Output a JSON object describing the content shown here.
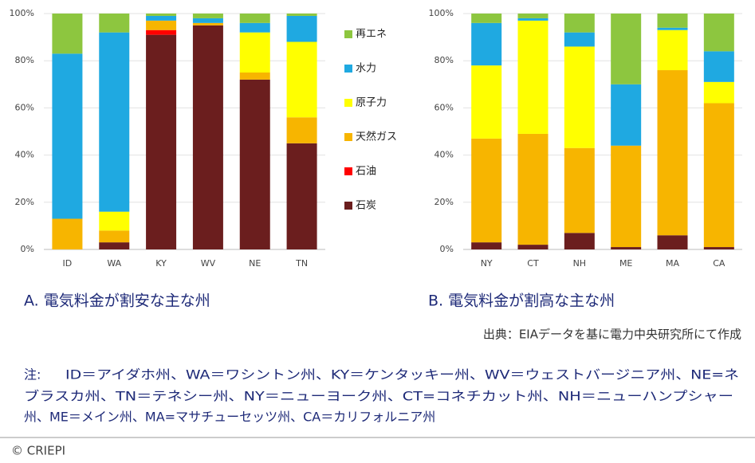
{
  "chart_data": [
    {
      "type": "bar",
      "stacked": true,
      "caption": "A. 電気料金が割安な主な州",
      "categories": [
        "ID",
        "WA",
        "KY",
        "WV",
        "NE",
        "TN"
      ],
      "series": [
        {
          "name": "石炭",
          "color": "#6b1e1e",
          "values": [
            0,
            3,
            91,
            95,
            72,
            45
          ]
        },
        {
          "name": "石油",
          "color": "#ff0000",
          "values": [
            0,
            0,
            2,
            0,
            0,
            0
          ]
        },
        {
          "name": "天然ガス",
          "color": "#f7b500",
          "values": [
            13,
            5,
            4,
            1,
            3,
            11
          ]
        },
        {
          "name": "原子力",
          "color": "#ffff00",
          "values": [
            0,
            8,
            0,
            0,
            17,
            32
          ]
        },
        {
          "name": "水力",
          "color": "#1fa9e1",
          "values": [
            70,
            76,
            2,
            2,
            4,
            11
          ]
        },
        {
          "name": "再エネ",
          "color": "#8dc63f",
          "values": [
            17,
            8,
            1,
            2,
            4,
            1
          ]
        }
      ],
      "ylim": [
        0,
        100
      ],
      "yticks": [
        {
          "value": 0,
          "label": "0%"
        },
        {
          "value": 20,
          "label": "20%"
        },
        {
          "value": 40,
          "label": "40%"
        },
        {
          "value": 60,
          "label": "60%"
        },
        {
          "value": 80,
          "label": "80%"
        },
        {
          "value": 100,
          "label": "100%"
        }
      ],
      "grid": true,
      "legend": "right"
    },
    {
      "type": "bar",
      "stacked": true,
      "caption": "B. 電気料金が割高な主な州",
      "categories": [
        "NY",
        "CT",
        "NH",
        "ME",
        "MA",
        "CA"
      ],
      "series": [
        {
          "color": "#6b1e1e",
          "values": [
            3,
            2,
            7,
            1,
            6,
            1
          ]
        },
        {
          "color": "#ff0000",
          "values": [
            0,
            0,
            0,
            0,
            0,
            0
          ]
        },
        {
          "color": "#f7b500",
          "values": [
            44,
            47,
            36,
            43,
            70,
            61
          ]
        },
        {
          "color": "#ffff00",
          "values": [
            31,
            48,
            43,
            0,
            17,
            9
          ]
        },
        {
          "color": "#1fa9e1",
          "values": [
            18,
            1,
            6,
            26,
            1,
            13
          ]
        },
        {
          "color": "#8dc63f",
          "values": [
            4,
            2,
            8,
            30,
            6,
            16
          ]
        }
      ],
      "ylim": [
        0,
        100
      ],
      "yticks": [
        {
          "value": 0,
          "label": "0%"
        },
        {
          "value": 20,
          "label": "20%"
        },
        {
          "value": 40,
          "label": "40%"
        },
        {
          "value": 60,
          "label": "60%"
        },
        {
          "value": 80,
          "label": "80%"
        },
        {
          "value": 100,
          "label": "100%"
        }
      ],
      "grid": true
    }
  ],
  "source": "出典：EIAデータを基に電力中央研究所にて作成",
  "note_label": "注:",
  "note_lines": [
    "ID＝アイダホ州、WA＝ワシントン州、KY＝ケンタッキー州、WV＝ウェストバージニア州、NE=ネ",
    "ブラスカ州、TN＝テネシー州、NY＝ニューヨーク州、CT=コネチカット州、NH＝ニューハンプシャー",
    "州、ME＝メイン州、MA=マサチューセッツ州、CA＝カリフォルニア州"
  ],
  "footer": "© CRIEPI"
}
